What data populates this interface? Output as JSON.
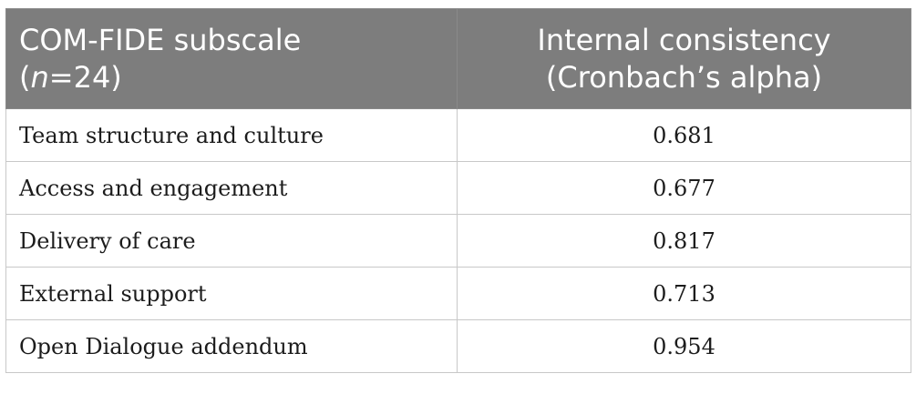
{
  "table": {
    "header": {
      "col1_line1": "COM-FIDE subscale",
      "col1_line2_open": "(",
      "col1_line2_n": "n",
      "col1_line2_rest": "=24)",
      "col2_line1": "Internal consistency",
      "col2_line2": "(Cronbach’s alpha)"
    },
    "rows": [
      {
        "subscale": "Team structure and culture",
        "alpha": "0.681"
      },
      {
        "subscale": "Access and engagement",
        "alpha": "0.677"
      },
      {
        "subscale": "Delivery of care",
        "alpha": "0.817"
      },
      {
        "subscale": "External support",
        "alpha": "0.713"
      },
      {
        "subscale": "Open Dialogue addendum",
        "alpha": "0.954"
      }
    ]
  }
}
